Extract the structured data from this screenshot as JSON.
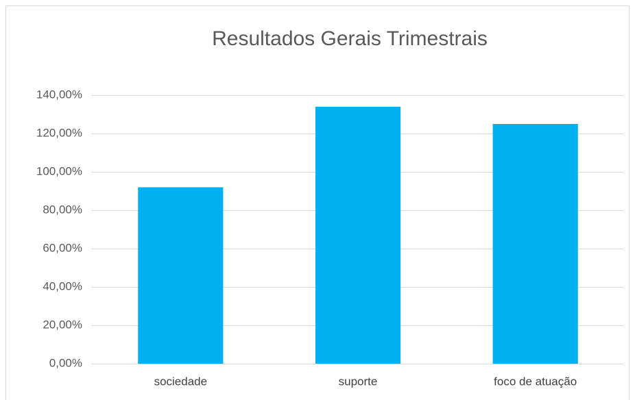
{
  "chart_data": {
    "type": "bar",
    "title": "Resultados Gerais Trimestrais",
    "categories": [
      "sociedade",
      "suporte",
      "foco de atuação"
    ],
    "values": [
      92,
      134,
      125
    ],
    "color": "#00b0f0",
    "ylim": [
      0,
      140
    ],
    "yticks": [
      {
        "value": 0,
        "label": "0,00%"
      },
      {
        "value": 20,
        "label": "20,00%"
      },
      {
        "value": 40,
        "label": "40,00%"
      },
      {
        "value": 60,
        "label": "60,00%"
      },
      {
        "value": 80,
        "label": "80,00%"
      },
      {
        "value": 100,
        "label": "100,00%"
      },
      {
        "value": 120,
        "label": "120,00%"
      },
      {
        "value": 140,
        "label": "140,00%"
      }
    ],
    "grid": true
  }
}
